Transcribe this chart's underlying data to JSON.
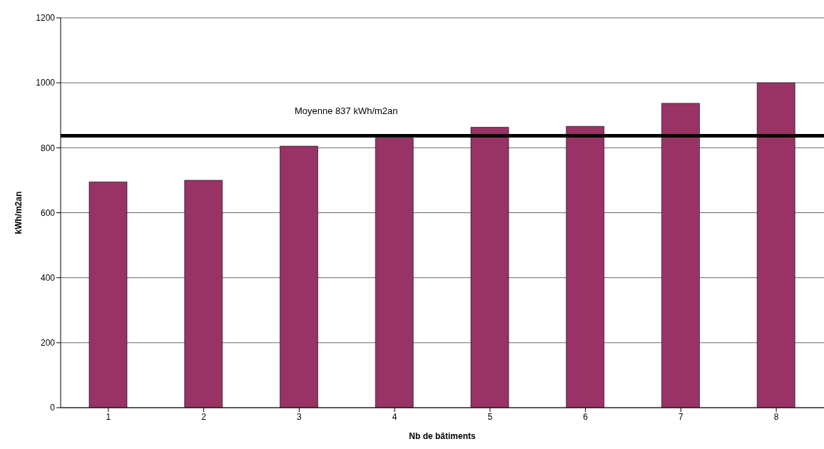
{
  "chart_data": {
    "type": "bar",
    "xlabel": "Nb de bâtiments",
    "ylabel": "kWh/m2an",
    "categories": [
      "1",
      "2",
      "3",
      "4",
      "5",
      "6",
      "7",
      "8"
    ],
    "values": [
      695,
      700,
      805,
      830,
      863,
      866,
      937,
      1000
    ],
    "color": "#993366",
    "ylim": [
      0,
      1200
    ],
    "yticks": [
      0,
      200,
      400,
      600,
      800,
      1000,
      1200
    ],
    "grid": "y",
    "ref_lines": [
      {
        "axis": "y",
        "value": 837,
        "label": "Moyenne 837 kWh/m2an",
        "color": "#000000"
      }
    ]
  }
}
